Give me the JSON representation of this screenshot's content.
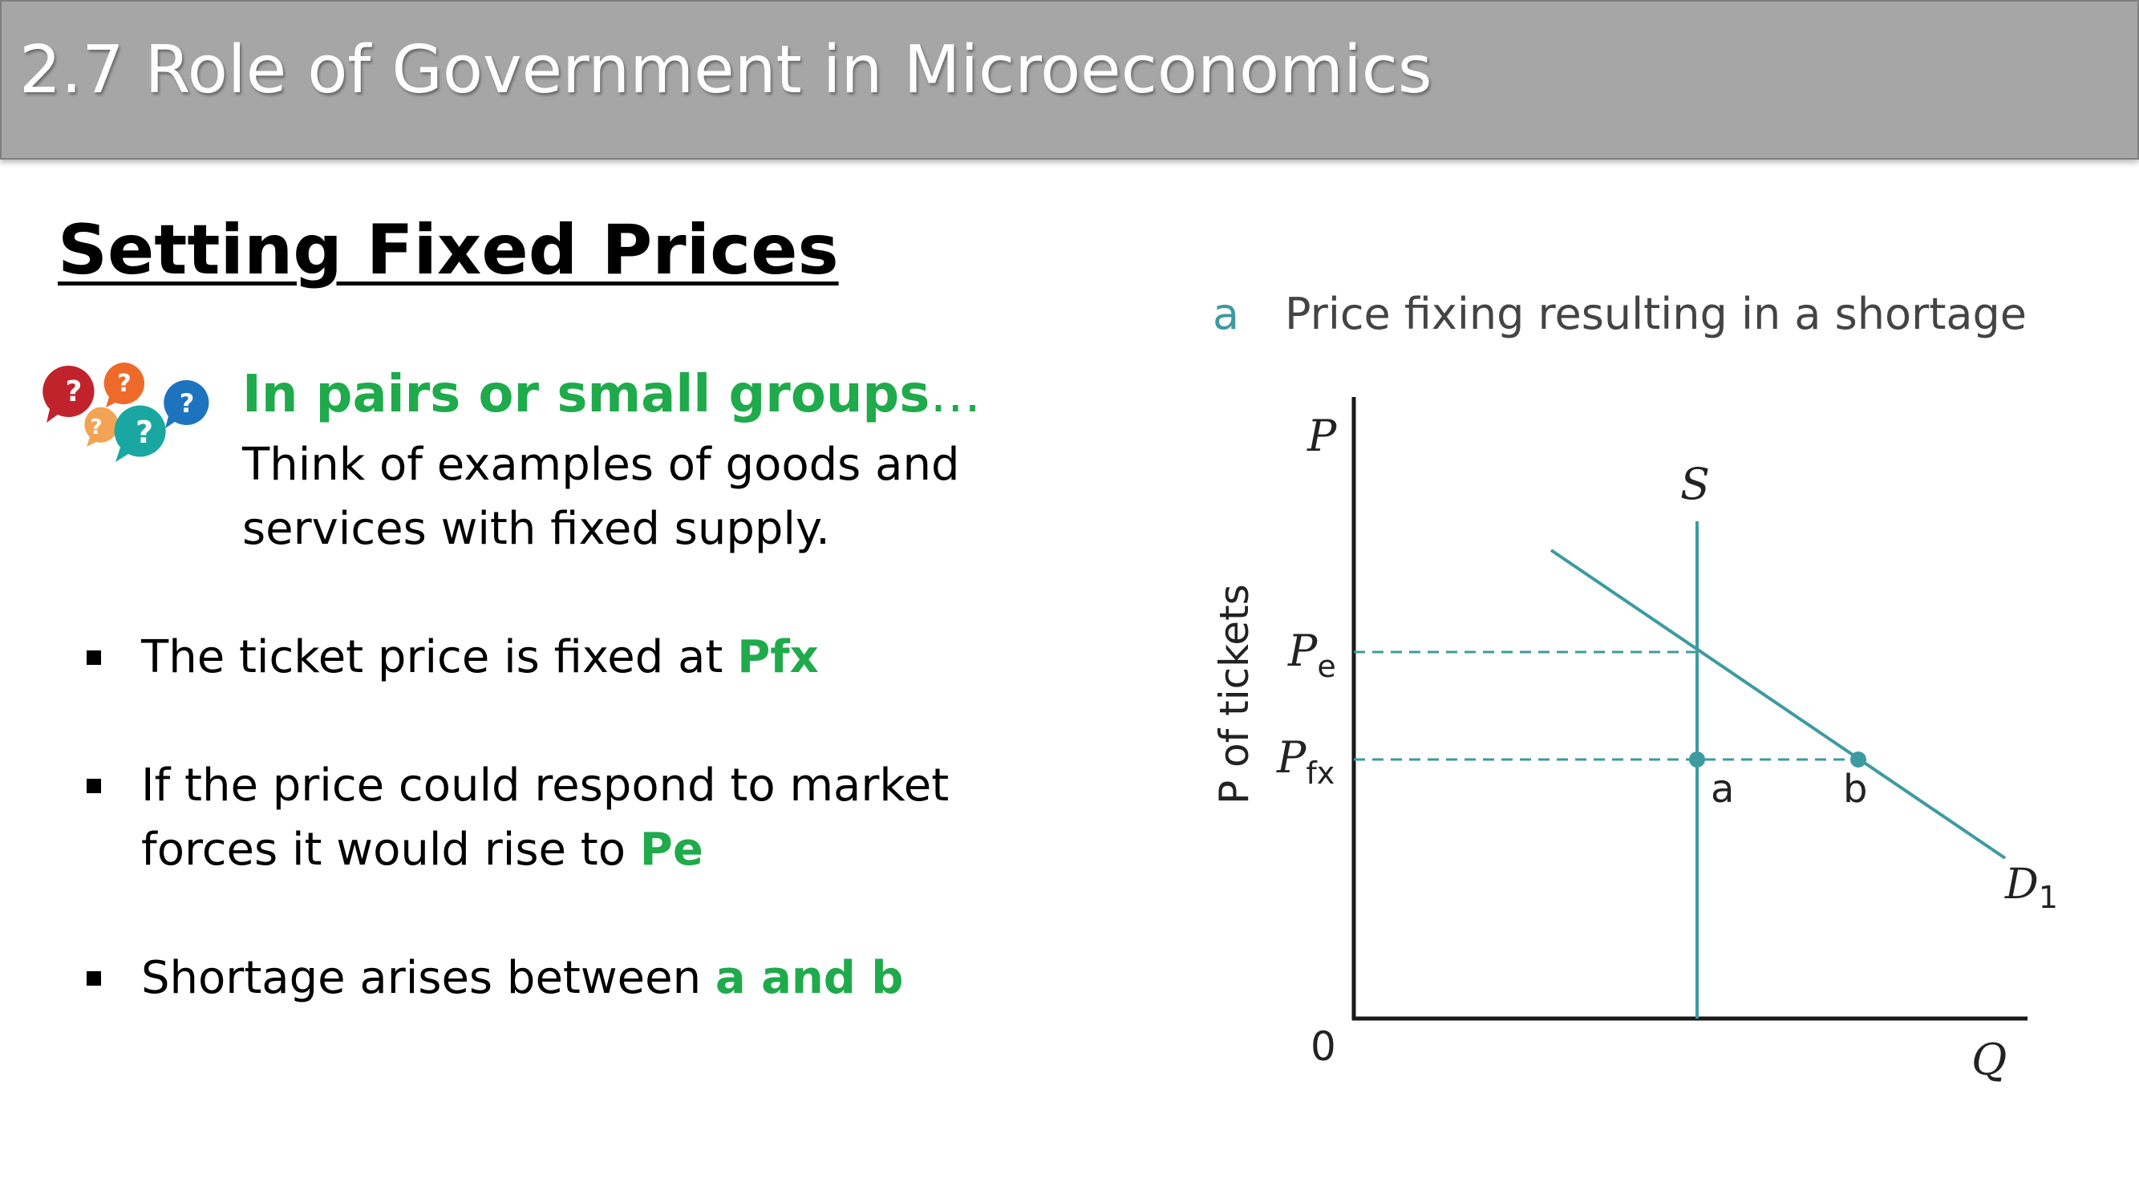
{
  "header": {
    "title": "2.7 Role of Government in Microeconomics"
  },
  "section_title": "Setting Fixed Prices",
  "prompt": {
    "icon": "question-speech-bubbles-icon",
    "heading": "In pairs or small groups",
    "ellipsis": "…",
    "text": "Think of examples of goods and services with fixed supply."
  },
  "bullets": [
    {
      "text": "The ticket price is fixed at ",
      "highlight": "Pfx"
    },
    {
      "text": "If the price could respond to market forces it would rise to ",
      "highlight": "Pe"
    },
    {
      "text": "Shortage arises between ",
      "highlight": "a and b"
    }
  ],
  "diagram": {
    "panel_letter": "a",
    "caption": "Price fixing resulting in a shortage",
    "y_axis_symbol": "P",
    "y_axis_title": "P of tickets",
    "x_axis_symbol": "Q",
    "origin": "0",
    "supply_label": "S",
    "demand_label": "D",
    "demand_subscript": "1",
    "pe_label": "P",
    "pe_sub": "e",
    "pfx_label": "P",
    "pfx_sub": "fx",
    "point_a": "a",
    "point_b": "b",
    "colors": {
      "curve": "#3d9aa1",
      "accent_text": "#3d9aa1",
      "highlight_text": "#1faa4b"
    }
  }
}
